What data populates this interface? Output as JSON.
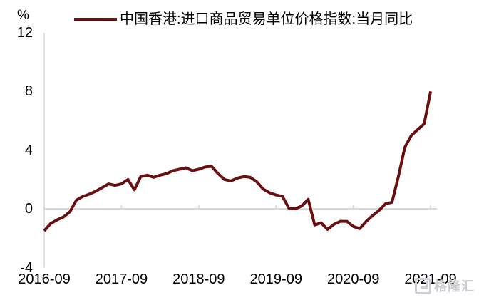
{
  "legend": {
    "label": "中国香港:进口商品贸易单位价格指数:当月同比"
  },
  "watermark": {
    "text": "格隆汇"
  },
  "chart_data": {
    "type": "line",
    "title": "",
    "y_unit": "%",
    "series_name": "中国香港:进口商品贸易单位价格指数:当月同比",
    "x": [
      "2016-09",
      "2016-10",
      "2016-11",
      "2016-12",
      "2017-01",
      "2017-02",
      "2017-03",
      "2017-04",
      "2017-05",
      "2017-06",
      "2017-07",
      "2017-08",
      "2017-09",
      "2017-10",
      "2017-11",
      "2017-12",
      "2018-01",
      "2018-02",
      "2018-03",
      "2018-04",
      "2018-05",
      "2018-06",
      "2018-07",
      "2018-08",
      "2018-09",
      "2018-10",
      "2018-11",
      "2018-12",
      "2019-01",
      "2019-02",
      "2019-03",
      "2019-04",
      "2019-05",
      "2019-06",
      "2019-07",
      "2019-08",
      "2019-09",
      "2019-10",
      "2019-11",
      "2019-12",
      "2020-01",
      "2020-02",
      "2020-03",
      "2020-04",
      "2020-05",
      "2020-06",
      "2020-07",
      "2020-08",
      "2020-09",
      "2020-10",
      "2020-11",
      "2020-12",
      "2021-01",
      "2021-02",
      "2021-03",
      "2021-04",
      "2021-05",
      "2021-06",
      "2021-07",
      "2021-08",
      "2021-09"
    ],
    "values": [
      -1.5,
      -1.0,
      -0.75,
      -0.55,
      -0.2,
      0.6,
      0.85,
      1.0,
      1.2,
      1.45,
      1.7,
      1.6,
      1.7,
      2.0,
      1.3,
      2.2,
      2.3,
      2.15,
      2.3,
      2.4,
      2.6,
      2.7,
      2.8,
      2.6,
      2.7,
      2.85,
      2.9,
      2.4,
      2.0,
      1.9,
      2.1,
      2.2,
      2.15,
      1.85,
      1.35,
      1.1,
      0.95,
      0.85,
      0.05,
      0.0,
      0.2,
      0.65,
      -1.1,
      -0.95,
      -1.4,
      -1.05,
      -0.85,
      -0.85,
      -1.2,
      -1.35,
      -0.85,
      -0.45,
      -0.1,
      0.35,
      0.45,
      2.2,
      4.2,
      5.0,
      5.4,
      5.8,
      8.0
    ],
    "y_ticks": [
      12,
      8,
      4,
      0,
      -4
    ],
    "x_tick_labels": [
      "2016-09",
      "2017-09",
      "2018-09",
      "2019-09",
      "2020-09",
      "2021-09"
    ],
    "ylim": [
      -4,
      12
    ],
    "grid": "zero-line-only",
    "legend_position": "top-center",
    "colors": {
      "line": "#6a0f0f",
      "axis": "#d9d9d9",
      "text": "#000000",
      "watermark": "#ccced3"
    }
  }
}
